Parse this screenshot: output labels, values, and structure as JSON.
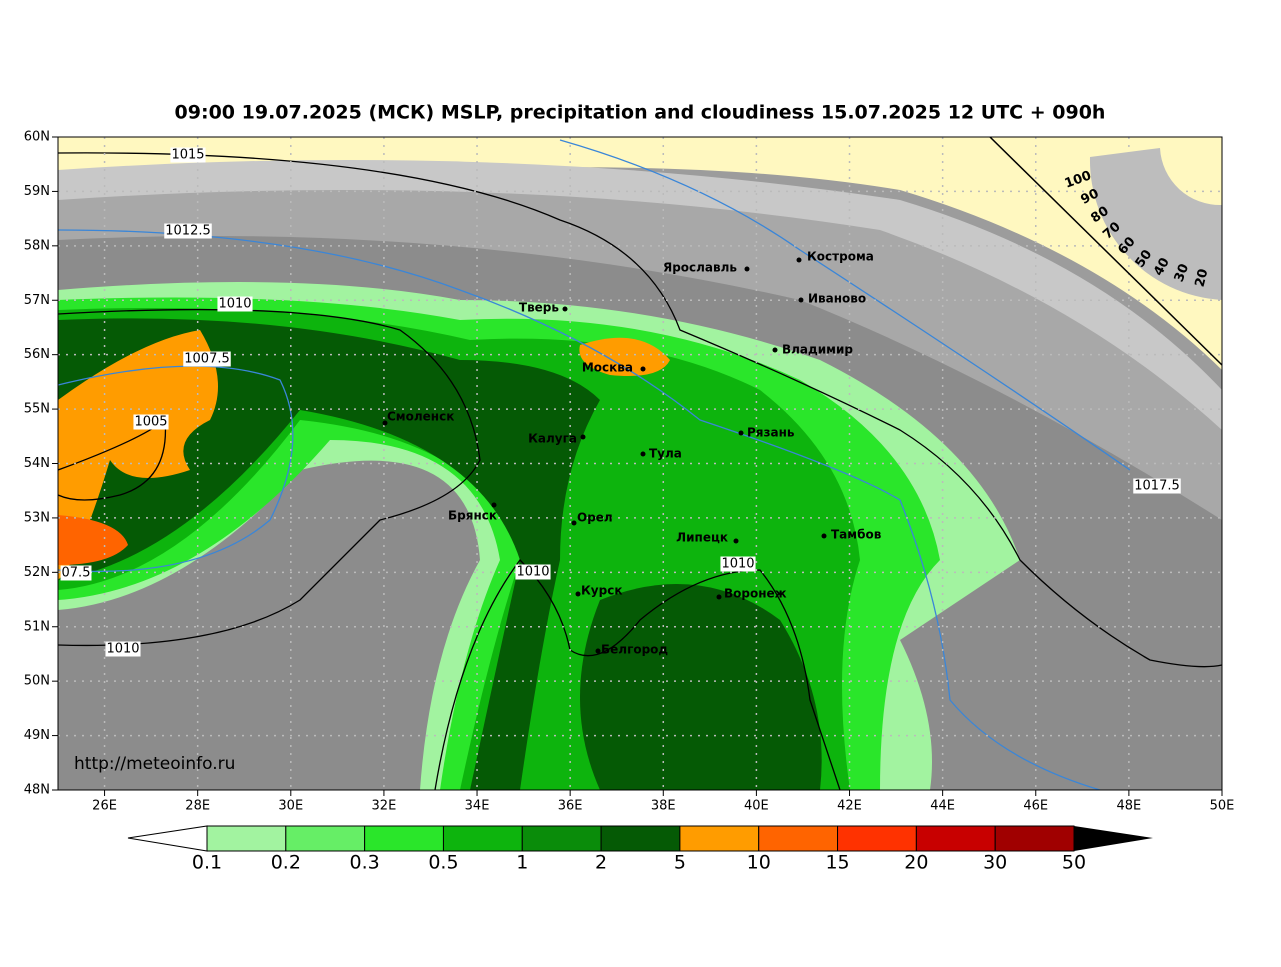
{
  "title": "09:00 19.07.2025 (МСК) MSLP, precipitation and cloudiness 15.07.2025 12 UTC + 090h",
  "lat_labels": [
    "60N",
    "59N",
    "58N",
    "57N",
    "56N",
    "55N",
    "54N",
    "53N",
    "52N",
    "51N",
    "50N",
    "49N",
    "48N"
  ],
  "lon_labels": [
    "26E",
    "28E",
    "30E",
    "32E",
    "34E",
    "36E",
    "38E",
    "40E",
    "42E",
    "44E",
    "46E",
    "48E",
    "50E"
  ],
  "cities": [
    "Ярославль",
    "Кострома",
    "Иваново",
    "Тверь",
    "Владимир",
    "Москва",
    "Смоленск",
    "Калуга",
    "Рязань",
    "Тула",
    "Брянск",
    "Орел",
    "Липецк",
    "Тамбов",
    "Курск",
    "Воронеж",
    "Белгород"
  ],
  "isobar_labels": [
    "1015",
    "1012.5",
    "1010",
    "1007.5",
    "1005",
    "07.5",
    "1010",
    "1010",
    "1010",
    "1017.5"
  ],
  "cloud_labels": [
    "100",
    "90",
    "80",
    "70",
    "60",
    "50",
    "40",
    "30",
    "20"
  ],
  "colorbar": {
    "labels": [
      "0.1",
      "0.2",
      "0.3",
      "0.5",
      "1",
      "2",
      "5",
      "10",
      "15",
      "20",
      "30",
      "50"
    ],
    "colors": [
      "#a2f3a0",
      "#66ee66",
      "#2ae62a",
      "#0db40d",
      "#0a8c0a",
      "#055a05",
      "#ff9c00",
      "#ff6400",
      "#ff3200",
      "#c80000",
      "#a00000"
    ]
  },
  "source": "http://meteoinfo.ru"
}
